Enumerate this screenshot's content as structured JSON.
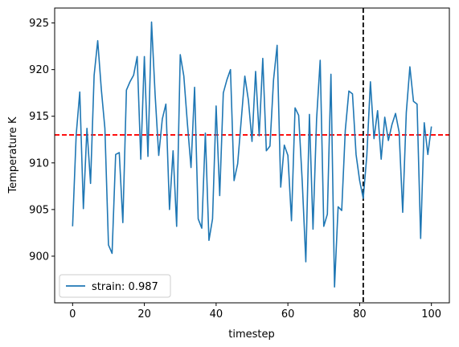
{
  "chart_data": {
    "type": "line",
    "xlabel": "timestep",
    "ylabel": "Temperature K",
    "xlim": [
      -5,
      105
    ],
    "ylim": [
      895.0,
      926.6
    ],
    "x_ticks": [
      0,
      20,
      40,
      60,
      80,
      100
    ],
    "y_ticks": [
      900,
      905,
      910,
      915,
      920,
      925
    ],
    "x_tick_labels": [
      "0",
      "20",
      "40",
      "60",
      "80",
      "100"
    ],
    "y_tick_labels": [
      "900",
      "905",
      "910",
      "915",
      "920",
      "925"
    ],
    "series": [
      {
        "name": "strain: 0.987",
        "color": "#1f77b4",
        "x": [
          0,
          1,
          2,
          3,
          4,
          5,
          6,
          7,
          8,
          9,
          10,
          11,
          12,
          13,
          14,
          15,
          16,
          17,
          18,
          19,
          20,
          21,
          22,
          23,
          24,
          25,
          26,
          27,
          28,
          29,
          30,
          31,
          32,
          33,
          34,
          35,
          36,
          37,
          38,
          39,
          40,
          41,
          42,
          43,
          44,
          45,
          46,
          47,
          48,
          49,
          50,
          51,
          52,
          53,
          54,
          55,
          56,
          57,
          58,
          59,
          60,
          61,
          62,
          63,
          64,
          65,
          66,
          67,
          68,
          69,
          70,
          71,
          72,
          73,
          74,
          75,
          76,
          77,
          78,
          79,
          80,
          81,
          82,
          83,
          84,
          85,
          86,
          87,
          88,
          89,
          90,
          91,
          92,
          93,
          94,
          95,
          96,
          97,
          98,
          99,
          100
        ],
        "y": [
          903.2,
          913.0,
          917.6,
          905.1,
          913.7,
          907.8,
          919.4,
          923.1,
          917.9,
          913.7,
          901.2,
          900.3,
          910.9,
          911.1,
          903.6,
          917.8,
          918.7,
          919.4,
          921.4,
          910.4,
          921.4,
          910.7,
          925.1,
          917.3,
          910.8,
          914.7,
          916.3,
          905.0,
          911.3,
          903.2,
          921.6,
          919.3,
          914.2,
          909.5,
          918.1,
          904.0,
          903.0,
          913.2,
          901.7,
          904.0,
          916.1,
          906.5,
          917.5,
          918.9,
          920.0,
          908.1,
          909.9,
          914.6,
          919.3,
          916.7,
          912.3,
          919.8,
          912.9,
          921.2,
          911.3,
          911.8,
          918.9,
          922.6,
          907.4,
          911.9,
          910.8,
          903.8,
          915.9,
          915.1,
          908.0,
          899.4,
          915.2,
          902.9,
          914.7,
          921.0,
          903.2,
          904.5,
          919.5,
          896.7,
          905.3,
          904.9,
          913.5,
          917.7,
          917.4,
          910.9,
          908.1,
          906.2,
          910.8,
          918.7,
          912.6,
          915.6,
          910.4,
          914.9,
          912.4,
          914.1,
          915.3,
          913.3,
          904.7,
          915.4,
          920.3,
          916.6,
          916.3,
          901.9,
          914.3,
          910.9,
          913.9
        ]
      }
    ],
    "hlines": [
      {
        "y": 913.0,
        "color": "#ff0000",
        "style": "dashed"
      }
    ],
    "vlines": [
      {
        "x": 81,
        "color": "#000000",
        "style": "dashed"
      }
    ],
    "grid": false,
    "legend_position": "lower-left"
  }
}
